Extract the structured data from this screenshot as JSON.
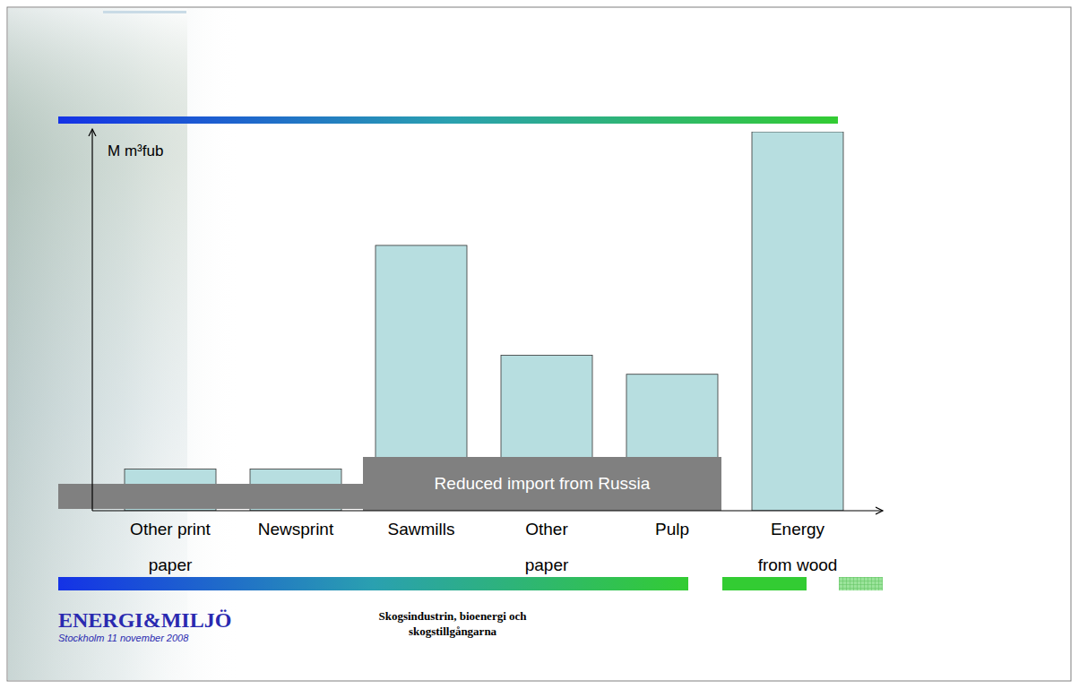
{
  "chart_data": {
    "type": "bar",
    "y_label": "M m³fub",
    "categories": [
      "Other print paper",
      "Newsprint",
      "Sawmills",
      "Other paper",
      "Pulp",
      "Energy from wood"
    ],
    "values": [
      11,
      11,
      70,
      41,
      36,
      100
    ],
    "color": "#b7dee0",
    "ylim": [
      0,
      100
    ],
    "tick_labels": false,
    "grid": false,
    "annotations": [
      "Reduced import from Russia"
    ]
  },
  "footer": {
    "brand": "ENERGI&MILJÖ",
    "date": "Stockholm 11 november 2008",
    "title": "Skogsindustrin, bioenergi och skogstillgångarna"
  }
}
